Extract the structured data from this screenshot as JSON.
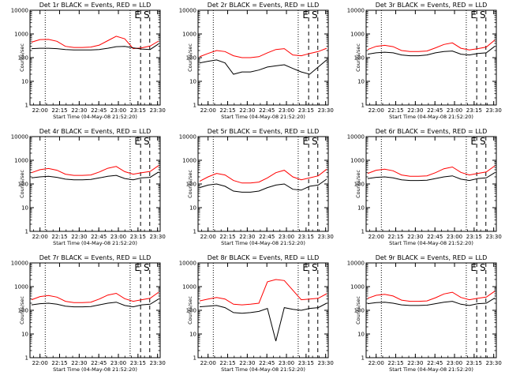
{
  "chart_data": {
    "type": "line",
    "layout": "3x3 grid",
    "ylabel": "Counts/sec",
    "xlabel": "Start Time (04-May-08 21:52:20)",
    "x_ticks": [
      "22:00",
      "22:15",
      "22:30",
      "22:45",
      "23:00",
      "23:15",
      "23:30"
    ],
    "y_ticks": [
      "1",
      "10",
      "100",
      "1000",
      "10000"
    ],
    "y_scale": "log",
    "ylim": [
      1,
      10000
    ],
    "xlim": [
      "21:52:20",
      "23:32:00"
    ],
    "dotted_lines_x": [
      "22:04",
      "23:09"
    ],
    "dashed_lines": [
      {
        "x": "23:17",
        "label": "E"
      },
      {
        "x": "23:24",
        "label": "S"
      }
    ],
    "series_colors": {
      "events": "#000000",
      "lld": "#ff0000"
    },
    "panels": [
      {
        "title": "Det 1r BLACK = Events, RED = LLD",
        "events": [
          240,
          250,
          250,
          240,
          220,
          210,
          210,
          210,
          220,
          250,
          290,
          300,
          260,
          230,
          220,
          380
        ],
        "lld": [
          450,
          580,
          590,
          490,
          300,
          270,
          270,
          280,
          340,
          520,
          800,
          620,
          240,
          260,
          310,
          500
        ]
      },
      {
        "title": "Det 2r BLACK = Events, RED = LLD",
        "events": [
          60,
          70,
          80,
          60,
          20,
          25,
          25,
          30,
          40,
          45,
          50,
          35,
          25,
          20,
          40,
          80
        ],
        "lld": [
          110,
          150,
          200,
          180,
          120,
          100,
          100,
          110,
          160,
          220,
          240,
          130,
          120,
          150,
          180,
          250
        ]
      },
      {
        "title": "Det 3r BLACK = Events, RED = LLD",
        "events": [
          140,
          160,
          170,
          160,
          130,
          120,
          120,
          130,
          160,
          180,
          190,
          140,
          130,
          150,
          160,
          300
        ],
        "lld": [
          220,
          300,
          330,
          290,
          200,
          180,
          180,
          190,
          260,
          360,
          420,
          250,
          210,
          240,
          280,
          550
        ]
      },
      {
        "title": "Det 4r BLACK = Events, RED = LLD",
        "events": [
          180,
          200,
          210,
          190,
          160,
          150,
          150,
          155,
          180,
          210,
          230,
          170,
          150,
          180,
          190,
          320
        ],
        "lld": [
          300,
          400,
          450,
          380,
          260,
          230,
          230,
          240,
          320,
          460,
          550,
          330,
          260,
          300,
          340,
          600
        ]
      },
      {
        "title": "Det 5r BLACK = Events, RED = LLD",
        "events": [
          70,
          90,
          100,
          80,
          50,
          45,
          45,
          50,
          70,
          90,
          100,
          60,
          55,
          80,
          90,
          160
        ],
        "lld": [
          130,
          200,
          280,
          240,
          140,
          110,
          110,
          120,
          180,
          300,
          380,
          200,
          150,
          180,
          220,
          420
        ]
      },
      {
        "title": "Det 6r BLACK = Events, RED = LLD",
        "events": [
          170,
          190,
          200,
          180,
          150,
          140,
          140,
          145,
          170,
          200,
          220,
          160,
          140,
          170,
          180,
          300
        ],
        "lld": [
          280,
          380,
          420,
          360,
          240,
          210,
          210,
          220,
          300,
          440,
          520,
          310,
          240,
          280,
          320,
          580
        ]
      },
      {
        "title": "Det 7r BLACK = Events, RED = LLD",
        "events": [
          170,
          190,
          200,
          180,
          150,
          140,
          140,
          145,
          170,
          200,
          220,
          160,
          140,
          170,
          180,
          300
        ],
        "lld": [
          280,
          380,
          420,
          360,
          240,
          210,
          210,
          220,
          300,
          440,
          520,
          310,
          240,
          280,
          320,
          580
        ]
      },
      {
        "title": "Det 8r BLACK = Events, RED = LLD",
        "events": [
          140,
          150,
          160,
          130,
          80,
          75,
          80,
          90,
          120,
          5,
          130,
          110,
          100,
          120,
          130,
          200
        ],
        "lld": [
          250,
          300,
          350,
          300,
          180,
          170,
          180,
          200,
          1600,
          2000,
          1800,
          700,
          280,
          300,
          320,
          500
        ]
      },
      {
        "title": "Det 9r BLACK = Events, RED = LLD",
        "events": [
          190,
          210,
          220,
          200,
          170,
          160,
          160,
          165,
          190,
          220,
          240,
          180,
          160,
          190,
          200,
          330
        ],
        "lld": [
          320,
          430,
          470,
          400,
          270,
          240,
          240,
          250,
          340,
          490,
          580,
          350,
          280,
          320,
          360,
          640
        ]
      }
    ]
  }
}
